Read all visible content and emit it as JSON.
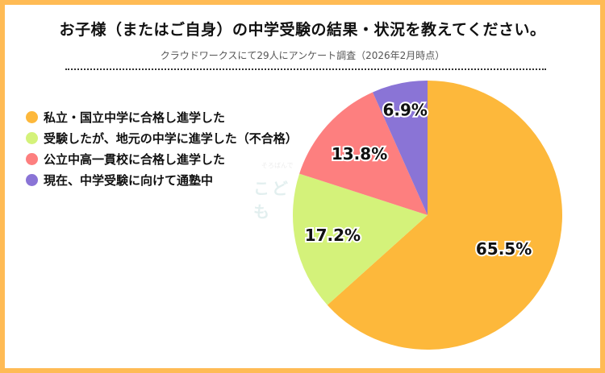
{
  "header": {
    "title": "お子様（またはご自身）の中学受験の結果・状況を教えてください。",
    "subtitle": "クラウドワークスにて29人にアンケート調査（2026年2月時点）"
  },
  "legend": {
    "items": [
      {
        "label": "私立・国立中学に合格し進学した",
        "color": "#fdb83b"
      },
      {
        "label": "受験したが、地元の中学に進学した（不合格）",
        "color": "#d4f27a"
      },
      {
        "label": "公立中高一貫校に合格し進学した",
        "color": "#fd7f7f"
      },
      {
        "label": "現在、中学受験に向けて通塾中",
        "color": "#8a74d6"
      }
    ]
  },
  "watermark": {
    "small": "そろばんで",
    "text": "こども"
  },
  "chart_data": {
    "type": "pie",
    "title": "お子様（またはご自身）の中学受験の結果・状況を教えてください。",
    "subtitle": "クラウドワークスにて29人にアンケート調査（2026年2月時点）",
    "categories": [
      "私立・国立中学に合格し進学した",
      "受験したが、地元の中学に進学した（不合格）",
      "公立中高一貫校に合格し進学した",
      "現在、中学受験に向けて通塾中"
    ],
    "values": [
      65.5,
      17.2,
      13.8,
      6.9
    ],
    "labels": [
      "65.5%",
      "17.2%",
      "13.8%",
      "6.9%"
    ],
    "colors": [
      "#fdb83b",
      "#d4f27a",
      "#fd7f7f",
      "#8a74d6"
    ],
    "start_angle": "12 o'clock, clockwise",
    "legend_position": "left"
  }
}
